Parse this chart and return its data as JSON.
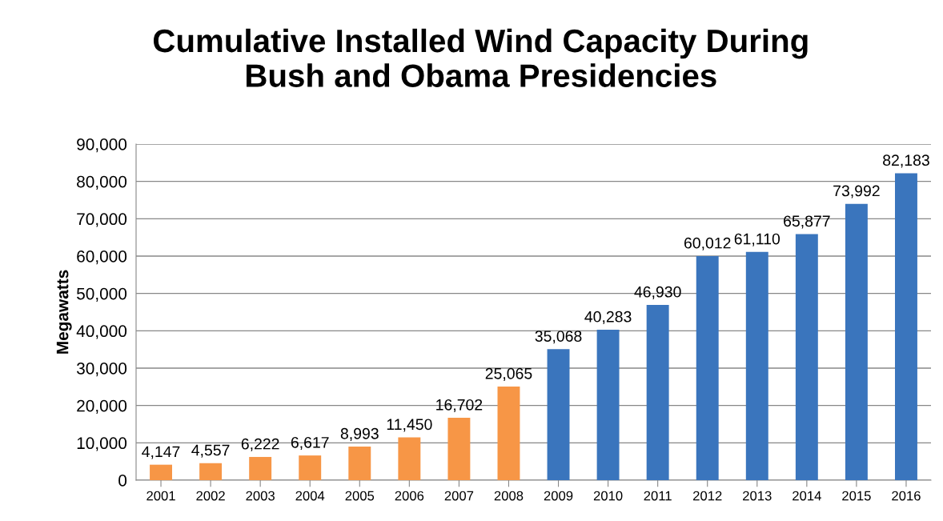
{
  "chart_data": {
    "type": "bar",
    "title": "Cumulative Installed Wind Capacity During\nBush and Obama Presidencies",
    "ylabel": "Megawatts",
    "categories": [
      "2001",
      "2002",
      "2003",
      "2004",
      "2005",
      "2006",
      "2007",
      "2008",
      "2009",
      "2010",
      "2011",
      "2012",
      "2013",
      "2014",
      "2015",
      "2016"
    ],
    "values": [
      4147,
      4557,
      6222,
      6617,
      8993,
      11450,
      16702,
      25065,
      35068,
      40283,
      46930,
      60012,
      61110,
      65877,
      73992,
      82183
    ],
    "value_labels": [
      "4,147",
      "4,557",
      "6,222",
      "6,617",
      "8,993",
      "11,450",
      "16,702",
      "25,065",
      "35,068",
      "40,283",
      "46,930",
      "60,012",
      "61,110",
      "65,877",
      "73,992",
      "82,183"
    ],
    "colors": [
      "#f79646",
      "#f79646",
      "#f79646",
      "#f79646",
      "#f79646",
      "#f79646",
      "#f79646",
      "#f79646",
      "#3a75bd",
      "#3a75bd",
      "#3a75bd",
      "#3a75bd",
      "#3a75bd",
      "#3a75bd",
      "#3a75bd",
      "#3a75bd"
    ],
    "ylim": [
      0,
      90000
    ],
    "yticks": [
      0,
      {
        "value": 10000,
        "label": "10,000"
      },
      {
        "value": 20000,
        "label": "20,000"
      },
      {
        "value": 30000,
        "label": "30,000"
      },
      {
        "value": 40000,
        "label": "40,000"
      },
      {
        "value": 50000,
        "label": "50,000"
      },
      {
        "value": 60000,
        "label": "60,000"
      },
      {
        "value": 70000,
        "label": "70,000"
      },
      {
        "value": 80000,
        "label": "80,000"
      },
      {
        "value": 90000,
        "label": "90,000"
      }
    ],
    "grid": "y"
  }
}
